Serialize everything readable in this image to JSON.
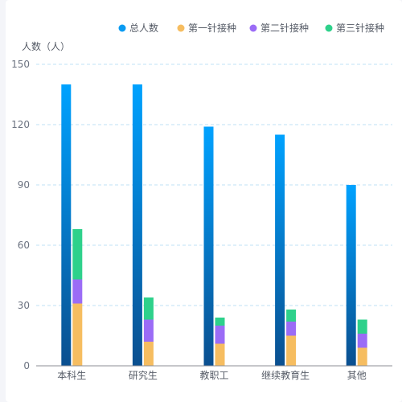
{
  "chart_data": {
    "type": "bar",
    "ylabel": "人数（人）",
    "ylim": [
      0,
      150
    ],
    "yticks": [
      0,
      30,
      60,
      90,
      120,
      150
    ],
    "grid": true,
    "legend_position": "top-right",
    "categories": [
      "本科生",
      "研究生",
      "教职工",
      "继续教育生",
      "其他"
    ],
    "series": [
      {
        "name": "总人数",
        "values": [
          140,
          140,
          119,
          115,
          90
        ],
        "color": "#0a9bf2",
        "stack": "total"
      },
      {
        "name": "第一针接种",
        "values": [
          31,
          12,
          11,
          15,
          9
        ],
        "color": "#f6bd60",
        "stack": "dose"
      },
      {
        "name": "第二针接种",
        "values": [
          12,
          11,
          9,
          7,
          7
        ],
        "color": "#9b6cf6",
        "stack": "dose"
      },
      {
        "name": "第三针接种",
        "values": [
          25,
          11,
          4,
          6,
          7
        ],
        "color": "#2ed18b",
        "stack": "dose"
      }
    ]
  }
}
